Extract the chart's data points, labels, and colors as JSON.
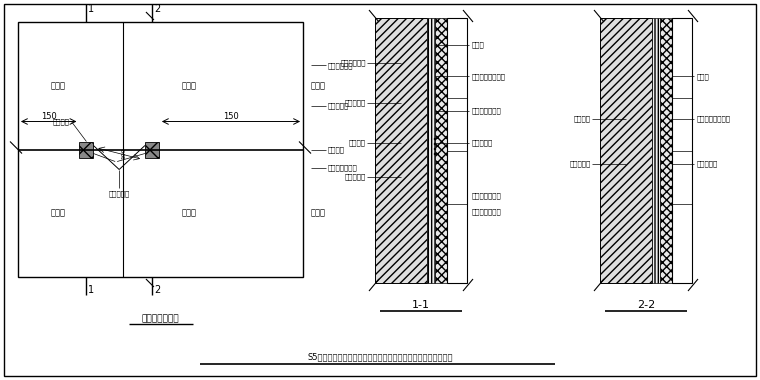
{
  "bg_color": "#ffffff",
  "title_bottom": "S5工程精装修大堂墙面湿贴工艺玻化砖湿贴局部加强做法示意图",
  "plan_title": "墙砖立面示意图",
  "section1_title": "1-1",
  "section2_title": "2-2",
  "plan_tiles": [
    "玻化砖",
    "玻化砖",
    "玻化砖",
    "玻化砖",
    "玻化砖",
    "玻化砖"
  ],
  "plan_right_tiles": [
    "玻化砖",
    "玻化砖"
  ],
  "dim_150": "150",
  "nail_label": "射钉固定",
  "bracket_label": "不锈钢挂件",
  "bracket_label2": "不锈钢挂连接件",
  "s1_left_labels": [
    "结构墙体基层",
    "墙体抹灰层",
    "射钉固定",
    "不锈钢挂件"
  ],
  "s1_right_labels": [
    "玻化砖",
    "玻化砖强力粘结剂",
    "云石胶快速固定",
    "填缝剂填缝",
    "玻化砖背面开槽",
    "采用云石胶固定"
  ],
  "s2_left_labels": [
    "墙体基层",
    "墙体抹灰层"
  ],
  "s2_right_labels": [
    "玻化砖",
    "玻化砖强力粘结剂",
    "填缝剂填缝"
  ]
}
